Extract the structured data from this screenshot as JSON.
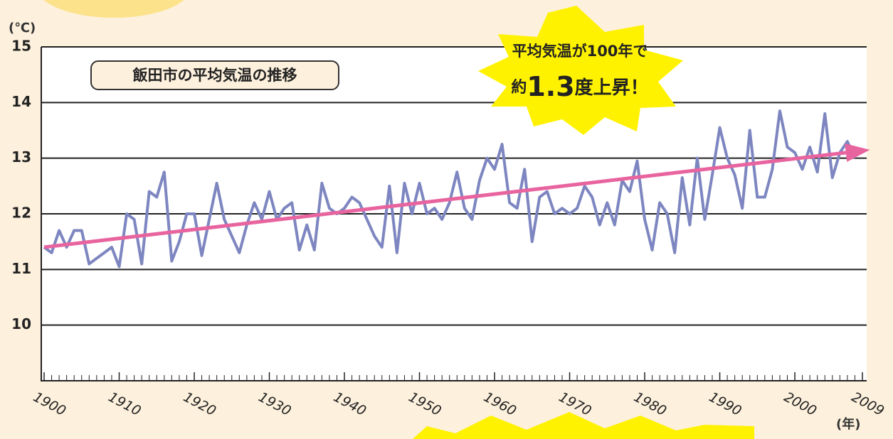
{
  "chart_data": {
    "type": "line",
    "title": "飯田市の平均気温の推移",
    "y_unit": "(℃)",
    "x_unit": "(年)",
    "annotation": {
      "line1": "平均気温が100年で",
      "prefix": "約",
      "value": "1.3",
      "suffix": "度上昇！"
    },
    "x": [
      1900,
      1901,
      1902,
      1903,
      1904,
      1905,
      1906,
      1907,
      1908,
      1909,
      1910,
      1911,
      1912,
      1913,
      1914,
      1915,
      1916,
      1917,
      1918,
      1919,
      1920,
      1921,
      1922,
      1923,
      1924,
      1925,
      1926,
      1927,
      1928,
      1929,
      1930,
      1931,
      1932,
      1933,
      1934,
      1935,
      1936,
      1937,
      1938,
      1939,
      1940,
      1941,
      1942,
      1943,
      1944,
      1945,
      1946,
      1947,
      1948,
      1949,
      1950,
      1951,
      1952,
      1953,
      1954,
      1955,
      1956,
      1957,
      1958,
      1959,
      1960,
      1961,
      1962,
      1963,
      1964,
      1965,
      1966,
      1967,
      1968,
      1969,
      1970,
      1971,
      1972,
      1973,
      1974,
      1975,
      1976,
      1977,
      1978,
      1979,
      1980,
      1981,
      1982,
      1983,
      1984,
      1985,
      1986,
      1987,
      1988,
      1989,
      1990,
      1991,
      1992,
      1993,
      1994,
      1995,
      1996,
      1997,
      1998,
      1999,
      2000,
      2001,
      2002,
      2003,
      2004,
      2005,
      2006,
      2007,
      2008
    ],
    "series": [
      {
        "color": "#7d86c0",
        "values": [
          11.4,
          11.3,
          11.7,
          11.4,
          11.7,
          11.7,
          11.1,
          11.2,
          11.3,
          11.4,
          11.05,
          12.0,
          11.9,
          11.1,
          12.4,
          12.3,
          12.75,
          11.15,
          11.5,
          12.0,
          12.0,
          11.25,
          11.9,
          12.55,
          11.9,
          11.6,
          11.3,
          11.8,
          12.2,
          11.9,
          12.4,
          11.9,
          12.1,
          12.2,
          11.35,
          11.8,
          11.35,
          12.55,
          12.1,
          12.0,
          12.1,
          12.3,
          12.2,
          11.9,
          11.6,
          11.4,
          12.5,
          11.3,
          12.55,
          12.0,
          12.55,
          12.0,
          12.1,
          11.9,
          12.2,
          12.75,
          12.1,
          11.9,
          12.6,
          13.0,
          12.8,
          13.25,
          12.2,
          12.1,
          12.8,
          11.5,
          12.3,
          12.4,
          12.0,
          12.1,
          12.0,
          12.1,
          12.5,
          12.3,
          11.8,
          12.2,
          11.8,
          12.6,
          12.4,
          12.95,
          11.9,
          11.35,
          12.2,
          12.0,
          11.3,
          12.65,
          11.8,
          13.0,
          11.9,
          12.7,
          13.55,
          13.0,
          12.7,
          12.1,
          13.5,
          12.3,
          12.3,
          12.8,
          13.85,
          13.2,
          13.1,
          12.8,
          13.2,
          12.75,
          13.8,
          12.65,
          13.1,
          13.3,
          13.0
        ]
      }
    ],
    "trend": {
      "color": "#e8649f",
      "x": [
        1900,
        2010
      ],
      "values": [
        11.4,
        13.15
      ]
    },
    "xlim": [
      1900,
      2009
    ],
    "xticks": [
      1900,
      1910,
      1920,
      1930,
      1940,
      1950,
      1960,
      1970,
      1980,
      1990,
      2000,
      2009
    ],
    "ylim": [
      9,
      15
    ],
    "yticks": [
      10,
      11,
      12,
      13,
      14,
      15
    ],
    "grid": true
  }
}
